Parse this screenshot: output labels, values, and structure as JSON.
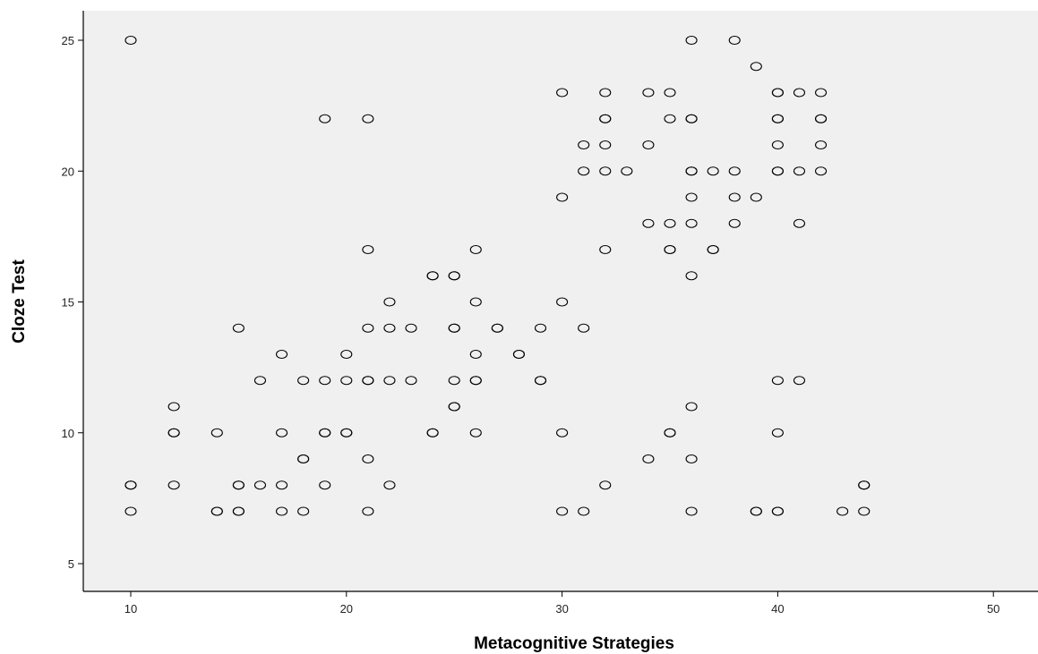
{
  "chart_data": {
    "type": "scatter",
    "title": "",
    "xlabel": "Metacognitive Strategies",
    "ylabel": "Cloze Test",
    "xlim": [
      8,
      52
    ],
    "ylim": [
      4,
      26
    ],
    "xticks": [
      10,
      20,
      30,
      40,
      50
    ],
    "yticks": [
      5,
      10,
      15,
      20,
      25
    ],
    "grid": false,
    "background_color": "#f0f0f0",
    "marker_color": "#000000",
    "points": [
      [
        10,
        25
      ],
      [
        36,
        25
      ],
      [
        38,
        25
      ],
      [
        39,
        24
      ],
      [
        30,
        23
      ],
      [
        32,
        23
      ],
      [
        34,
        23
      ],
      [
        35,
        23
      ],
      [
        40,
        23
      ],
      [
        40,
        23
      ],
      [
        41,
        23
      ],
      [
        42,
        23
      ],
      [
        19,
        22
      ],
      [
        21,
        22
      ],
      [
        32,
        22
      ],
      [
        32,
        22
      ],
      [
        35,
        22
      ],
      [
        36,
        22
      ],
      [
        36,
        22
      ],
      [
        40,
        22
      ],
      [
        40,
        22
      ],
      [
        42,
        22
      ],
      [
        42,
        22
      ],
      [
        31,
        21
      ],
      [
        32,
        21
      ],
      [
        34,
        21
      ],
      [
        40,
        21
      ],
      [
        42,
        21
      ],
      [
        31,
        20
      ],
      [
        32,
        20
      ],
      [
        33,
        20
      ],
      [
        36,
        20
      ],
      [
        36,
        20
      ],
      [
        37,
        20
      ],
      [
        38,
        20
      ],
      [
        40,
        20
      ],
      [
        40,
        20
      ],
      [
        41,
        20
      ],
      [
        42,
        20
      ],
      [
        30,
        19
      ],
      [
        36,
        19
      ],
      [
        38,
        19
      ],
      [
        39,
        19
      ],
      [
        34,
        18
      ],
      [
        35,
        18
      ],
      [
        36,
        18
      ],
      [
        38,
        18
      ],
      [
        41,
        18
      ],
      [
        21,
        17
      ],
      [
        26,
        17
      ],
      [
        32,
        17
      ],
      [
        35,
        17
      ],
      [
        35,
        17
      ],
      [
        37,
        17
      ],
      [
        37,
        17
      ],
      [
        24,
        16
      ],
      [
        24,
        16
      ],
      [
        25,
        16
      ],
      [
        25,
        16
      ],
      [
        36,
        16
      ],
      [
        22,
        15
      ],
      [
        26,
        15
      ],
      [
        30,
        15
      ],
      [
        15,
        14
      ],
      [
        21,
        14
      ],
      [
        22,
        14
      ],
      [
        23,
        14
      ],
      [
        25,
        14
      ],
      [
        25,
        14
      ],
      [
        27,
        14
      ],
      [
        27,
        14
      ],
      [
        29,
        14
      ],
      [
        31,
        14
      ],
      [
        17,
        13
      ],
      [
        20,
        13
      ],
      [
        26,
        13
      ],
      [
        28,
        13
      ],
      [
        28,
        13
      ],
      [
        16,
        12
      ],
      [
        18,
        12
      ],
      [
        19,
        12
      ],
      [
        20,
        12
      ],
      [
        21,
        12
      ],
      [
        21,
        12
      ],
      [
        22,
        12
      ],
      [
        23,
        12
      ],
      [
        25,
        12
      ],
      [
        26,
        12
      ],
      [
        26,
        12
      ],
      [
        29,
        12
      ],
      [
        29,
        12
      ],
      [
        40,
        12
      ],
      [
        41,
        12
      ],
      [
        12,
        11
      ],
      [
        25,
        11
      ],
      [
        25,
        11
      ],
      [
        36,
        11
      ],
      [
        12,
        10
      ],
      [
        12,
        10
      ],
      [
        14,
        10
      ],
      [
        17,
        10
      ],
      [
        19,
        10
      ],
      [
        19,
        10
      ],
      [
        20,
        10
      ],
      [
        20,
        10
      ],
      [
        24,
        10
      ],
      [
        24,
        10
      ],
      [
        26,
        10
      ],
      [
        30,
        10
      ],
      [
        35,
        10
      ],
      [
        35,
        10
      ],
      [
        40,
        10
      ],
      [
        18,
        9
      ],
      [
        18,
        9
      ],
      [
        21,
        9
      ],
      [
        34,
        9
      ],
      [
        36,
        9
      ],
      [
        10,
        8
      ],
      [
        10,
        8
      ],
      [
        12,
        8
      ],
      [
        15,
        8
      ],
      [
        15,
        8
      ],
      [
        16,
        8
      ],
      [
        17,
        8
      ],
      [
        19,
        8
      ],
      [
        22,
        8
      ],
      [
        32,
        8
      ],
      [
        44,
        8
      ],
      [
        44,
        8
      ],
      [
        10,
        7
      ],
      [
        14,
        7
      ],
      [
        14,
        7
      ],
      [
        15,
        7
      ],
      [
        15,
        7
      ],
      [
        17,
        7
      ],
      [
        18,
        7
      ],
      [
        21,
        7
      ],
      [
        30,
        7
      ],
      [
        31,
        7
      ],
      [
        36,
        7
      ],
      [
        39,
        7
      ],
      [
        39,
        7
      ],
      [
        40,
        7
      ],
      [
        40,
        7
      ],
      [
        43,
        7
      ],
      [
        44,
        7
      ]
    ]
  }
}
